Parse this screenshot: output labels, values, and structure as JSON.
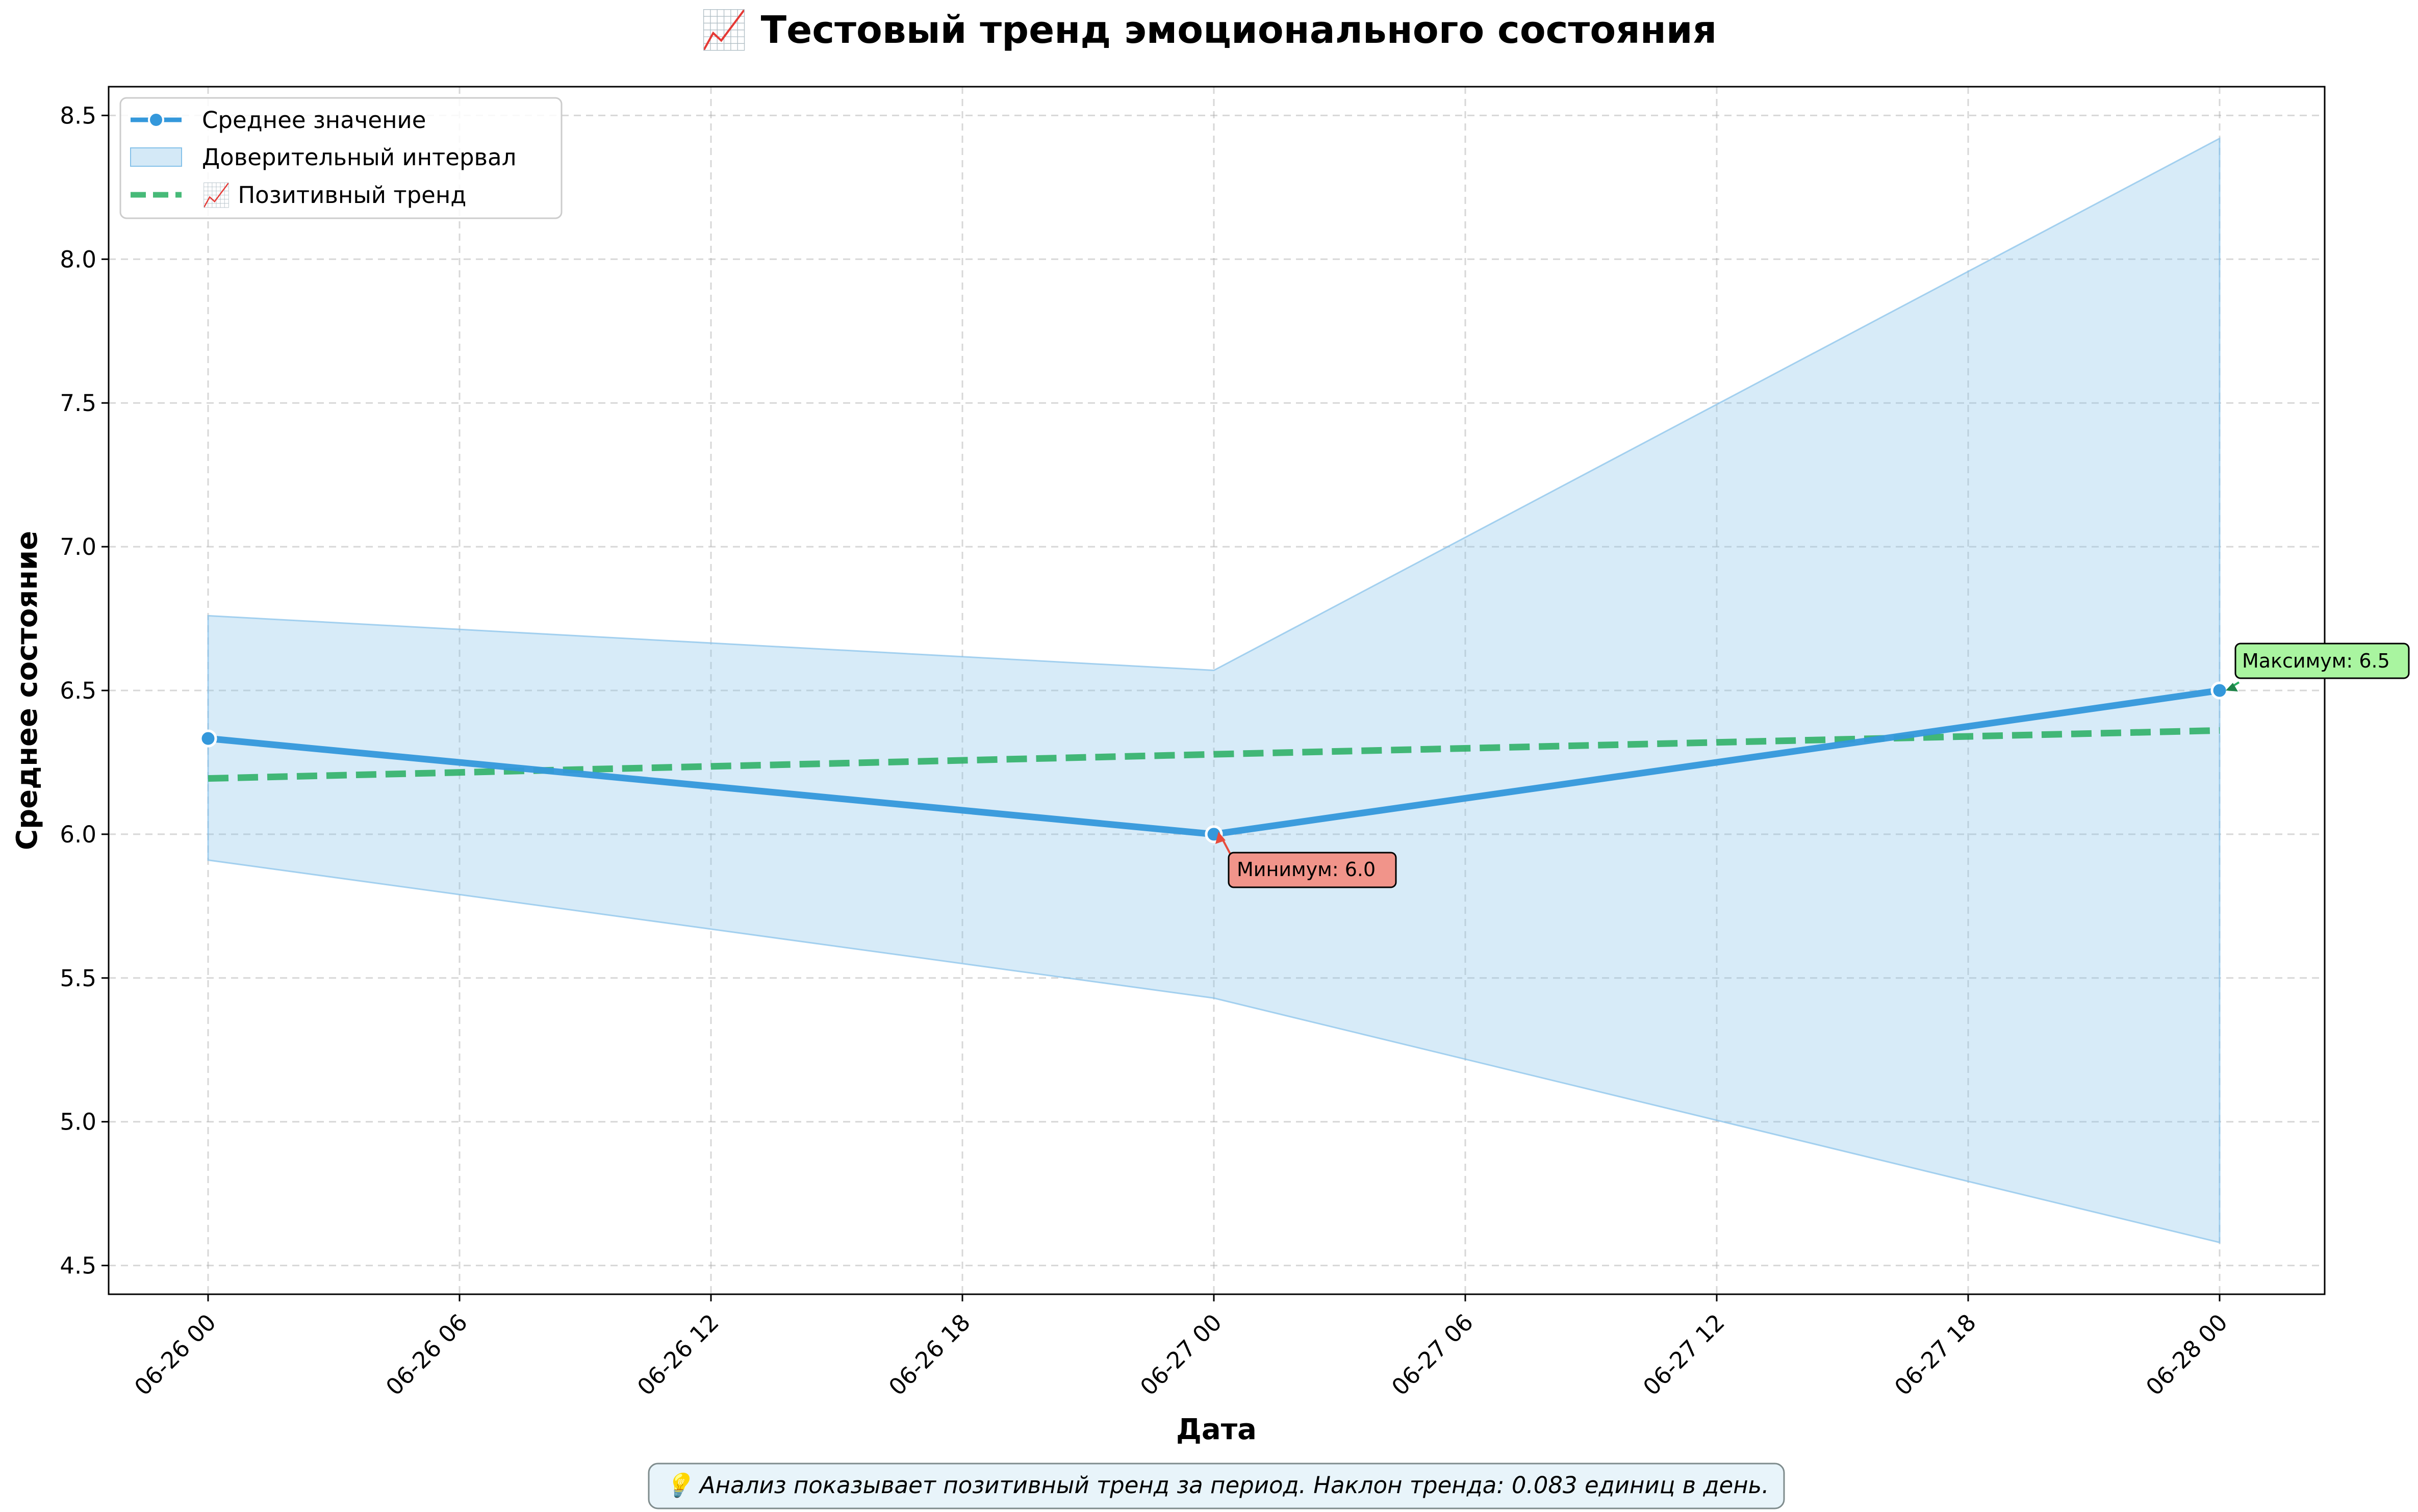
{
  "chart_data": {
    "type": "line",
    "title": "📈 Тестовый тренд эмоционального состояния",
    "xlabel": "Дата",
    "ylabel": "Среднее состояние",
    "x_ticks": [
      "06-26 00",
      "06-26 06",
      "06-26 12",
      "06-26 18",
      "06-27 00",
      "06-27 06",
      "06-27 12",
      "06-27 18",
      "06-28 00"
    ],
    "y_ticks": [
      "4.5",
      "5.0",
      "5.5",
      "6.0",
      "6.5",
      "7.0",
      "7.5",
      "8.0",
      "8.5"
    ],
    "ylim": [
      4.4,
      8.6
    ],
    "grid": true,
    "legend_position": "top-left",
    "x": [
      "2025-06-26",
      "2025-06-27",
      "2025-06-28"
    ],
    "series": [
      {
        "name": "Среднее значение",
        "kind": "line-markers",
        "color": "#3498db",
        "values": [
          6.333,
          6.0,
          6.5
        ]
      },
      {
        "name": "Доверительный интервал",
        "kind": "band",
        "color": "#85c1e9",
        "lower": [
          5.91,
          5.43,
          4.58
        ],
        "upper": [
          6.76,
          6.57,
          8.42
        ]
      },
      {
        "name": "📈 Позитивный тренд",
        "kind": "dashed-line",
        "color": "#27ae60",
        "values": [
          6.194,
          6.278,
          6.361
        ]
      }
    ],
    "annotations": [
      {
        "text": "Минимум: 6.0",
        "x": "2025-06-27",
        "y": 6.0,
        "box_color": "#f1948a",
        "arrow_color": "#e74c3c"
      },
      {
        "text": "Максимум: 6.5",
        "x": "2025-06-28",
        "y": 6.5,
        "box_color": "#a9f5a0",
        "arrow_color": "#27ae60"
      }
    ],
    "footnote": "💡 Анализ показывает позитивный тренд за период. Наклон тренда: 0.083 единиц в день."
  }
}
